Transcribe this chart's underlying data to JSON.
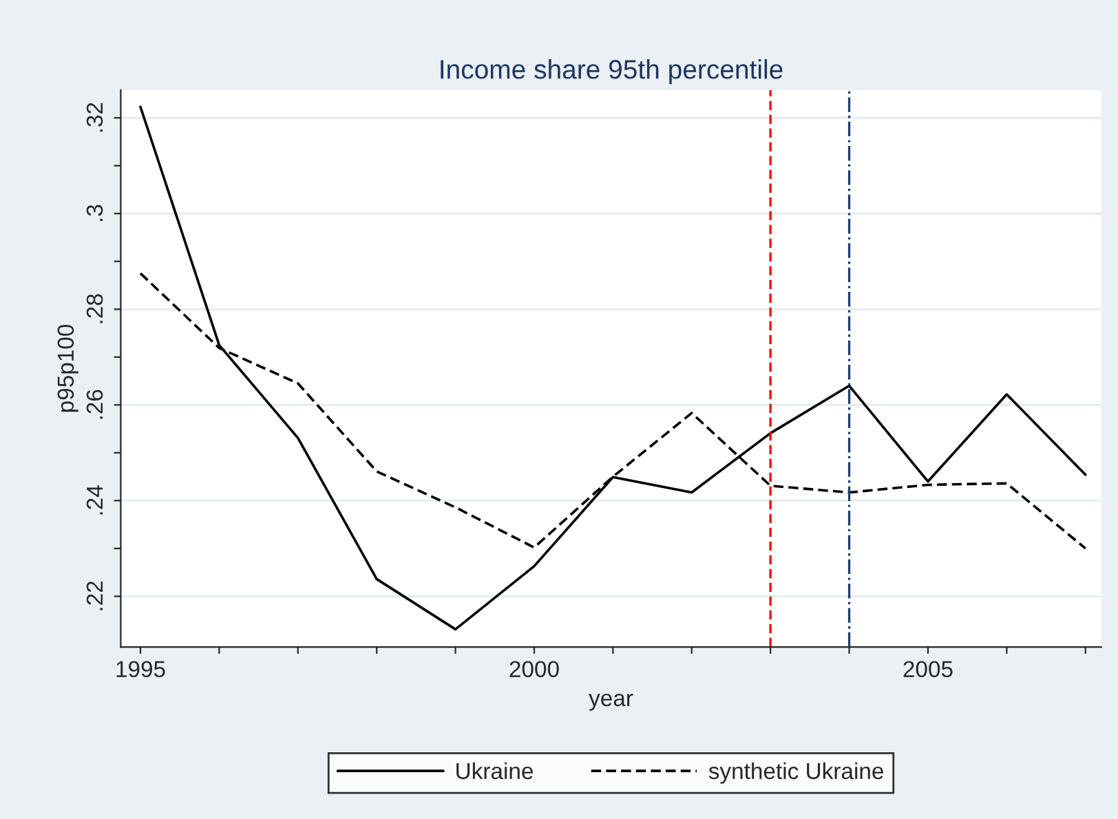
{
  "chart_data": {
    "type": "line",
    "title": "Income share 95th percentile",
    "xlabel": "year",
    "ylabel": "p95p100",
    "x": [
      1995,
      1996,
      1997,
      1998,
      1999,
      2000,
      2001,
      2002,
      2003,
      2004,
      2005,
      2006,
      2007
    ],
    "series": [
      {
        "name": "Ukraine",
        "color": "#000000",
        "line_style": "solid",
        "values": [
          0.3223,
          0.2725,
          0.2531,
          0.2236,
          0.2131,
          0.2263,
          0.2449,
          0.2417,
          0.2541,
          0.264,
          0.244,
          0.2622,
          0.2454
        ]
      },
      {
        "name": "synthetic Ukraine",
        "color": "#000000",
        "line_style": "dashed",
        "values": [
          0.2875,
          0.2719,
          0.2645,
          0.2461,
          0.2386,
          0.2302,
          0.245,
          0.2583,
          0.2431,
          0.2417,
          0.2433,
          0.2436,
          0.23
        ]
      }
    ],
    "xlim": [
      1994.75,
      2007.2
    ],
    "ylim": [
      0.2094,
      0.3258
    ],
    "xticks": [
      1995,
      {
        "value": 1996,
        "label": null
      },
      {
        "value": 1997,
        "label": null
      },
      {
        "value": 1998,
        "label": null
      },
      {
        "value": 1999,
        "label": null
      },
      2000,
      {
        "value": 2001,
        "label": null
      },
      {
        "value": 2002,
        "label": null
      },
      {
        "value": 2003,
        "label": null
      },
      {
        "value": 2004,
        "label": null
      },
      2005,
      {
        "value": 2006,
        "label": null
      },
      {
        "value": 2007,
        "label": null
      }
    ],
    "yticks": [
      {
        "value": 0.22,
        "label": ".22"
      },
      {
        "value": 0.23,
        "label": null
      },
      {
        "value": 0.24,
        "label": ".24"
      },
      {
        "value": 0.25,
        "label": null
      },
      {
        "value": 0.26,
        "label": ".26"
      },
      {
        "value": 0.27,
        "label": null
      },
      {
        "value": 0.28,
        "label": ".28"
      },
      {
        "value": 0.29,
        "label": null
      },
      {
        "value": 0.3,
        "label": ".3"
      },
      {
        "value": 0.31,
        "label": null
      },
      {
        "value": 0.32,
        "label": ".32"
      }
    ],
    "ref_lines": [
      {
        "axis": "x",
        "value": 2003,
        "color": "#ff0000",
        "line_style": "dashed"
      },
      {
        "axis": "x",
        "value": 2004,
        "color": "#1f3f6f",
        "line_style": "dashdot"
      }
    ],
    "grid": "y",
    "legend": "bottom",
    "marker": "none"
  }
}
